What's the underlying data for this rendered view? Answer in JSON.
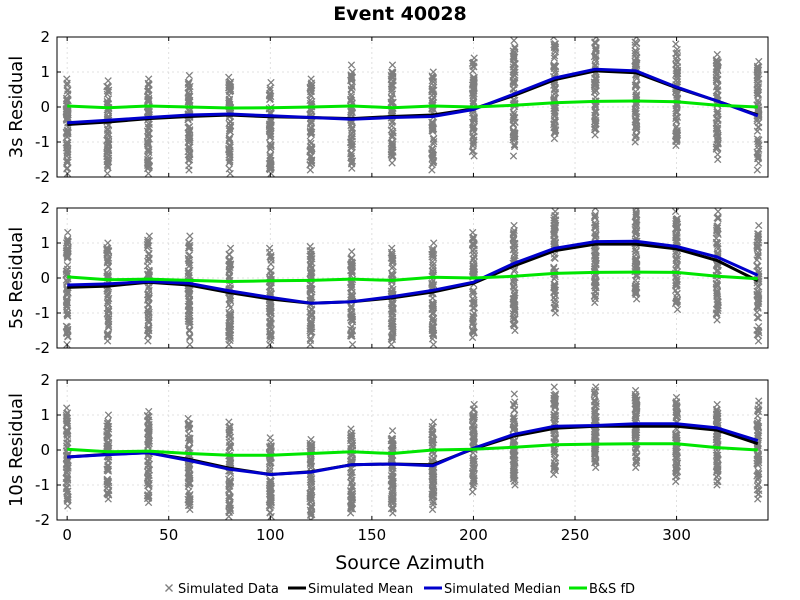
{
  "chart_data": {
    "type": "line",
    "title": "Event 40028",
    "xlabel": "Source Azimuth",
    "xlim": [
      -5,
      345
    ],
    "x_ticks": [
      0,
      50,
      100,
      150,
      200,
      250,
      300
    ],
    "x": [
      0,
      20,
      40,
      60,
      80,
      100,
      120,
      140,
      160,
      180,
      200,
      220,
      240,
      260,
      280,
      300,
      320,
      340
    ],
    "grid": true,
    "legend_position": "bottom",
    "legend": [
      {
        "name": "Simulated Data",
        "color": "#7f7f7f",
        "marker": "x"
      },
      {
        "name": "Simulated Mean",
        "color": "#000000",
        "marker": "line"
      },
      {
        "name": "Simulated Median",
        "color": "#0000cc",
        "marker": "line"
      },
      {
        "name": "B&S fD",
        "color": "#00e600",
        "marker": "line"
      }
    ],
    "panels": [
      {
        "ylabel": "3s Residual",
        "ylim": [
          -2,
          2
        ],
        "y_ticks": [
          -2,
          -1,
          0,
          1,
          2
        ],
        "data_range": [
          {
            "min": -1.9,
            "max": 0.8
          },
          {
            "min": -1.9,
            "max": 0.75
          },
          {
            "min": -1.9,
            "max": 0.8
          },
          {
            "min": -1.8,
            "max": 0.9
          },
          {
            "min": -1.9,
            "max": 0.85
          },
          {
            "min": -1.9,
            "max": 0.7
          },
          {
            "min": -1.8,
            "max": 0.8
          },
          {
            "min": -1.75,
            "max": 1.2
          },
          {
            "min": -1.6,
            "max": 1.2
          },
          {
            "min": -1.8,
            "max": 1.0
          },
          {
            "min": -1.4,
            "max": 1.4
          },
          {
            "min": -1.4,
            "max": 1.9
          },
          {
            "min": -0.9,
            "max": 2.0
          },
          {
            "min": -0.8,
            "max": 2.0
          },
          {
            "min": -1.0,
            "max": 2.0
          },
          {
            "min": -1.1,
            "max": 1.8
          },
          {
            "min": -1.5,
            "max": 1.5
          },
          {
            "min": -1.8,
            "max": 1.3
          }
        ],
        "series": [
          {
            "name": "Simulated Mean",
            "color": "#000000",
            "values": [
              -0.5,
              -0.43,
              -0.33,
              -0.27,
              -0.23,
              -0.28,
              -0.3,
              -0.33,
              -0.27,
              -0.23,
              -0.05,
              0.33,
              0.78,
              1.03,
              0.98,
              0.55,
              0.17,
              -0.23
            ]
          },
          {
            "name": "Simulated Median",
            "color": "#0000cc",
            "values": [
              -0.45,
              -0.38,
              -0.3,
              -0.23,
              -0.2,
              -0.25,
              -0.3,
              -0.35,
              -0.3,
              -0.27,
              -0.07,
              0.37,
              0.83,
              1.08,
              1.03,
              0.57,
              0.17,
              -0.25
            ]
          },
          {
            "name": "B&S fD",
            "color": "#00e600",
            "values": [
              0.03,
              -0.02,
              0.03,
              0.0,
              -0.03,
              -0.02,
              0.0,
              0.03,
              -0.02,
              0.03,
              0.0,
              0.05,
              0.12,
              0.16,
              0.17,
              0.15,
              0.05,
              0.0
            ]
          }
        ]
      },
      {
        "ylabel": "5s Residual",
        "ylim": [
          -2,
          2
        ],
        "y_ticks": [
          -2,
          -1,
          0,
          1,
          2
        ],
        "data_range": [
          {
            "min": -1.9,
            "max": 1.3
          },
          {
            "min": -1.8,
            "max": 1.0
          },
          {
            "min": -1.8,
            "max": 1.2
          },
          {
            "min": -1.9,
            "max": 1.2
          },
          {
            "min": -1.9,
            "max": 0.85
          },
          {
            "min": -1.9,
            "max": 0.85
          },
          {
            "min": -1.9,
            "max": 0.9
          },
          {
            "min": -1.9,
            "max": 0.75
          },
          {
            "min": -1.9,
            "max": 0.85
          },
          {
            "min": -1.9,
            "max": 1.0
          },
          {
            "min": -1.7,
            "max": 1.3
          },
          {
            "min": -1.5,
            "max": 1.5
          },
          {
            "min": -1.0,
            "max": 1.9
          },
          {
            "min": -0.7,
            "max": 2.0
          },
          {
            "min": -0.6,
            "max": 2.0
          },
          {
            "min": -0.9,
            "max": 1.9
          },
          {
            "min": -1.2,
            "max": 1.9
          },
          {
            "min": -1.8,
            "max": 1.5
          }
        ],
        "series": [
          {
            "name": "Simulated Mean",
            "color": "#000000",
            "values": [
              -0.27,
              -0.23,
              -0.12,
              -0.2,
              -0.42,
              -0.6,
              -0.72,
              -0.68,
              -0.57,
              -0.4,
              -0.15,
              0.35,
              0.78,
              0.97,
              0.97,
              0.83,
              0.5,
              -0.08
            ]
          },
          {
            "name": "Simulated Median",
            "color": "#0000cc",
            "values": [
              -0.2,
              -0.17,
              -0.1,
              -0.15,
              -0.37,
              -0.55,
              -0.72,
              -0.68,
              -0.53,
              -0.35,
              -0.12,
              0.42,
              0.85,
              1.04,
              1.05,
              0.9,
              0.6,
              0.08
            ]
          },
          {
            "name": "B&S fD",
            "color": "#00e600",
            "values": [
              0.03,
              -0.05,
              -0.03,
              -0.07,
              -0.1,
              -0.08,
              -0.07,
              -0.03,
              -0.07,
              0.02,
              0.0,
              0.05,
              0.13,
              0.16,
              0.17,
              0.16,
              0.05,
              -0.02
            ]
          }
        ]
      },
      {
        "ylabel": "10s Residual",
        "ylim": [
          -2,
          2
        ],
        "y_ticks": [
          -2,
          -1,
          0,
          1,
          2
        ],
        "data_range": [
          {
            "min": -1.6,
            "max": 1.2
          },
          {
            "min": -1.4,
            "max": 1.0
          },
          {
            "min": -1.5,
            "max": 1.1
          },
          {
            "min": -1.7,
            "max": 0.9
          },
          {
            "min": -1.9,
            "max": 0.8
          },
          {
            "min": -1.9,
            "max": 0.35
          },
          {
            "min": -2.0,
            "max": 0.3
          },
          {
            "min": -1.8,
            "max": 0.6
          },
          {
            "min": -1.8,
            "max": 0.55
          },
          {
            "min": -1.7,
            "max": 0.8
          },
          {
            "min": -1.2,
            "max": 1.3
          },
          {
            "min": -1.0,
            "max": 1.6
          },
          {
            "min": -0.7,
            "max": 1.8
          },
          {
            "min": -0.5,
            "max": 1.8
          },
          {
            "min": -0.5,
            "max": 1.7
          },
          {
            "min": -0.9,
            "max": 1.5
          },
          {
            "min": -1.0,
            "max": 1.3
          },
          {
            "min": -1.4,
            "max": 1.4
          }
        ],
        "series": [
          {
            "name": "Simulated Mean",
            "color": "#000000",
            "values": [
              -0.2,
              -0.12,
              -0.08,
              -0.27,
              -0.52,
              -0.7,
              -0.62,
              -0.42,
              -0.4,
              -0.42,
              0.03,
              0.4,
              0.62,
              0.68,
              0.68,
              0.68,
              0.57,
              0.18
            ]
          },
          {
            "name": "Simulated Median",
            "color": "#0000cc",
            "values": [
              -0.2,
              -0.13,
              -0.08,
              -0.3,
              -0.55,
              -0.7,
              -0.63,
              -0.42,
              -0.4,
              -0.45,
              0.05,
              0.45,
              0.68,
              0.7,
              0.75,
              0.75,
              0.63,
              0.27
            ]
          },
          {
            "name": "B&S fD",
            "color": "#00e600",
            "values": [
              0.02,
              -0.05,
              -0.03,
              -0.1,
              -0.15,
              -0.15,
              -0.1,
              -0.05,
              -0.1,
              0.0,
              0.02,
              0.08,
              0.15,
              0.17,
              0.18,
              0.18,
              0.07,
              0.0
            ]
          }
        ]
      }
    ]
  }
}
